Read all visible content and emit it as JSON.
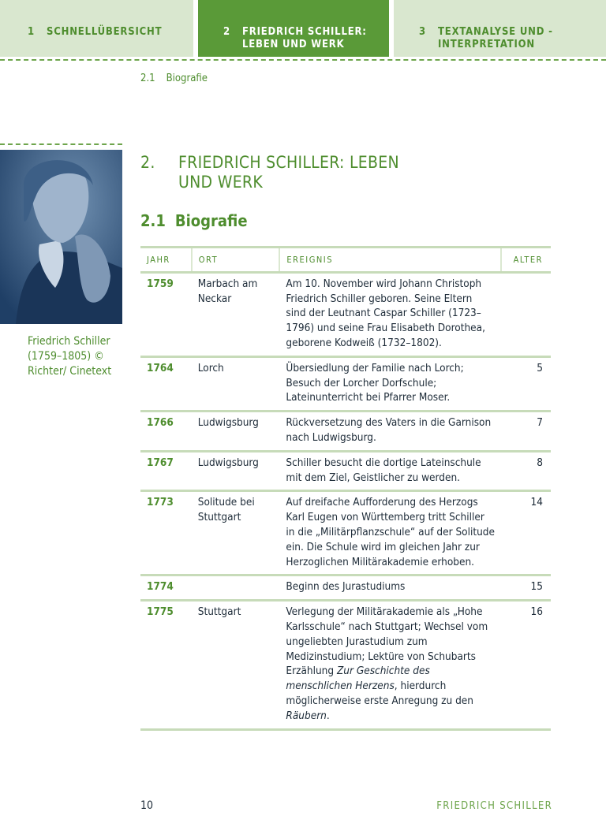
{
  "header": {
    "tabs": [
      {
        "num": "1",
        "label": "SCHNELLÜBERSICHT",
        "active": false
      },
      {
        "num": "2",
        "label": "FRIEDRICH SCHILLER: LEBEN UND WERK",
        "active": true
      },
      {
        "num": "3",
        "label": "TEXTANALYSE UND -INTERPRETATION",
        "active": false
      }
    ]
  },
  "breadcrumb": {
    "num": "2.1",
    "label": "Biografie"
  },
  "sidebar": {
    "caption": "Friedrich Schiller (1759–1805) © Richter/ Cinetext"
  },
  "main": {
    "chapter_num": "2.",
    "chapter_title": "FRIEDRICH SCHILLER: LEBEN UND WERK",
    "section_num": "2.1",
    "section_title": "Biografie",
    "table": {
      "headers": [
        "JAHR",
        "ORT",
        "EREIGNIS",
        "ALTER"
      ],
      "rows": [
        {
          "year": "1759",
          "place": "Marbach am Neckar",
          "event": [
            {
              "t": "Am 10. November wird Johann Christoph Friedrich Schiller geboren. Seine Eltern sind der Leutnant Caspar Schiller (1723–1796) und seine Frau Elisabeth Dorothea, geborene Kodweiß (1732–1802)."
            }
          ],
          "age": ""
        },
        {
          "year": "1764",
          "place": "Lorch",
          "event": [
            {
              "t": "Übersiedlung der Familie nach Lorch; Besuch der Lorcher Dorfschule; Lateinunterricht bei Pfarrer Moser."
            }
          ],
          "age": "5"
        },
        {
          "year": "1766",
          "place": "Ludwigsburg",
          "event": [
            {
              "t": "Rückversetzung des Vaters in die Garnison nach Ludwigsburg."
            }
          ],
          "age": "7"
        },
        {
          "year": "1767",
          "place": "Ludwigsburg",
          "event": [
            {
              "t": "Schiller besucht die dortige Lateinschule mit dem Ziel, Geistlicher zu werden."
            }
          ],
          "age": "8"
        },
        {
          "year": "1773",
          "place": "Solitude bei Stuttgart",
          "event": [
            {
              "t": "Auf dreifache Aufforderung des Herzogs Karl Eugen von Württemberg tritt Schiller in die „Militärpflanzschule“ auf der Solitude ein. Die Schule wird im gleichen Jahr zur Herzoglichen Militärakademie erhoben."
            }
          ],
          "age": "14"
        },
        {
          "year": "1774",
          "place": "",
          "event": [
            {
              "t": "Beginn des Jurastudiums"
            }
          ],
          "age": "15"
        },
        {
          "year": "1775",
          "place": "Stuttgart",
          "event": [
            {
              "t": "Verlegung der Militärakademie als „Hohe Karlsschule“ nach Stuttgart; Wechsel vom ungeliebten Jurastudium zum Medizinstudium; Lektüre von Schubarts Erzählung "
            },
            {
              "t": "Zur Geschichte des menschlichen Herzens",
              "i": true
            },
            {
              "t": ", hierdurch möglicherweise erste Anregung zu den "
            },
            {
              "t": "Räubern",
              "i": true
            },
            {
              "t": "."
            }
          ],
          "age": "16"
        }
      ]
    }
  },
  "footer": {
    "page_number": "10",
    "running_title": "FRIEDRICH SCHILLER"
  },
  "colors": {
    "accent": "#5a9a38",
    "tab_light": "#d9e7cf",
    "text_green": "#4e8d2e",
    "text": "#1d2b38"
  }
}
